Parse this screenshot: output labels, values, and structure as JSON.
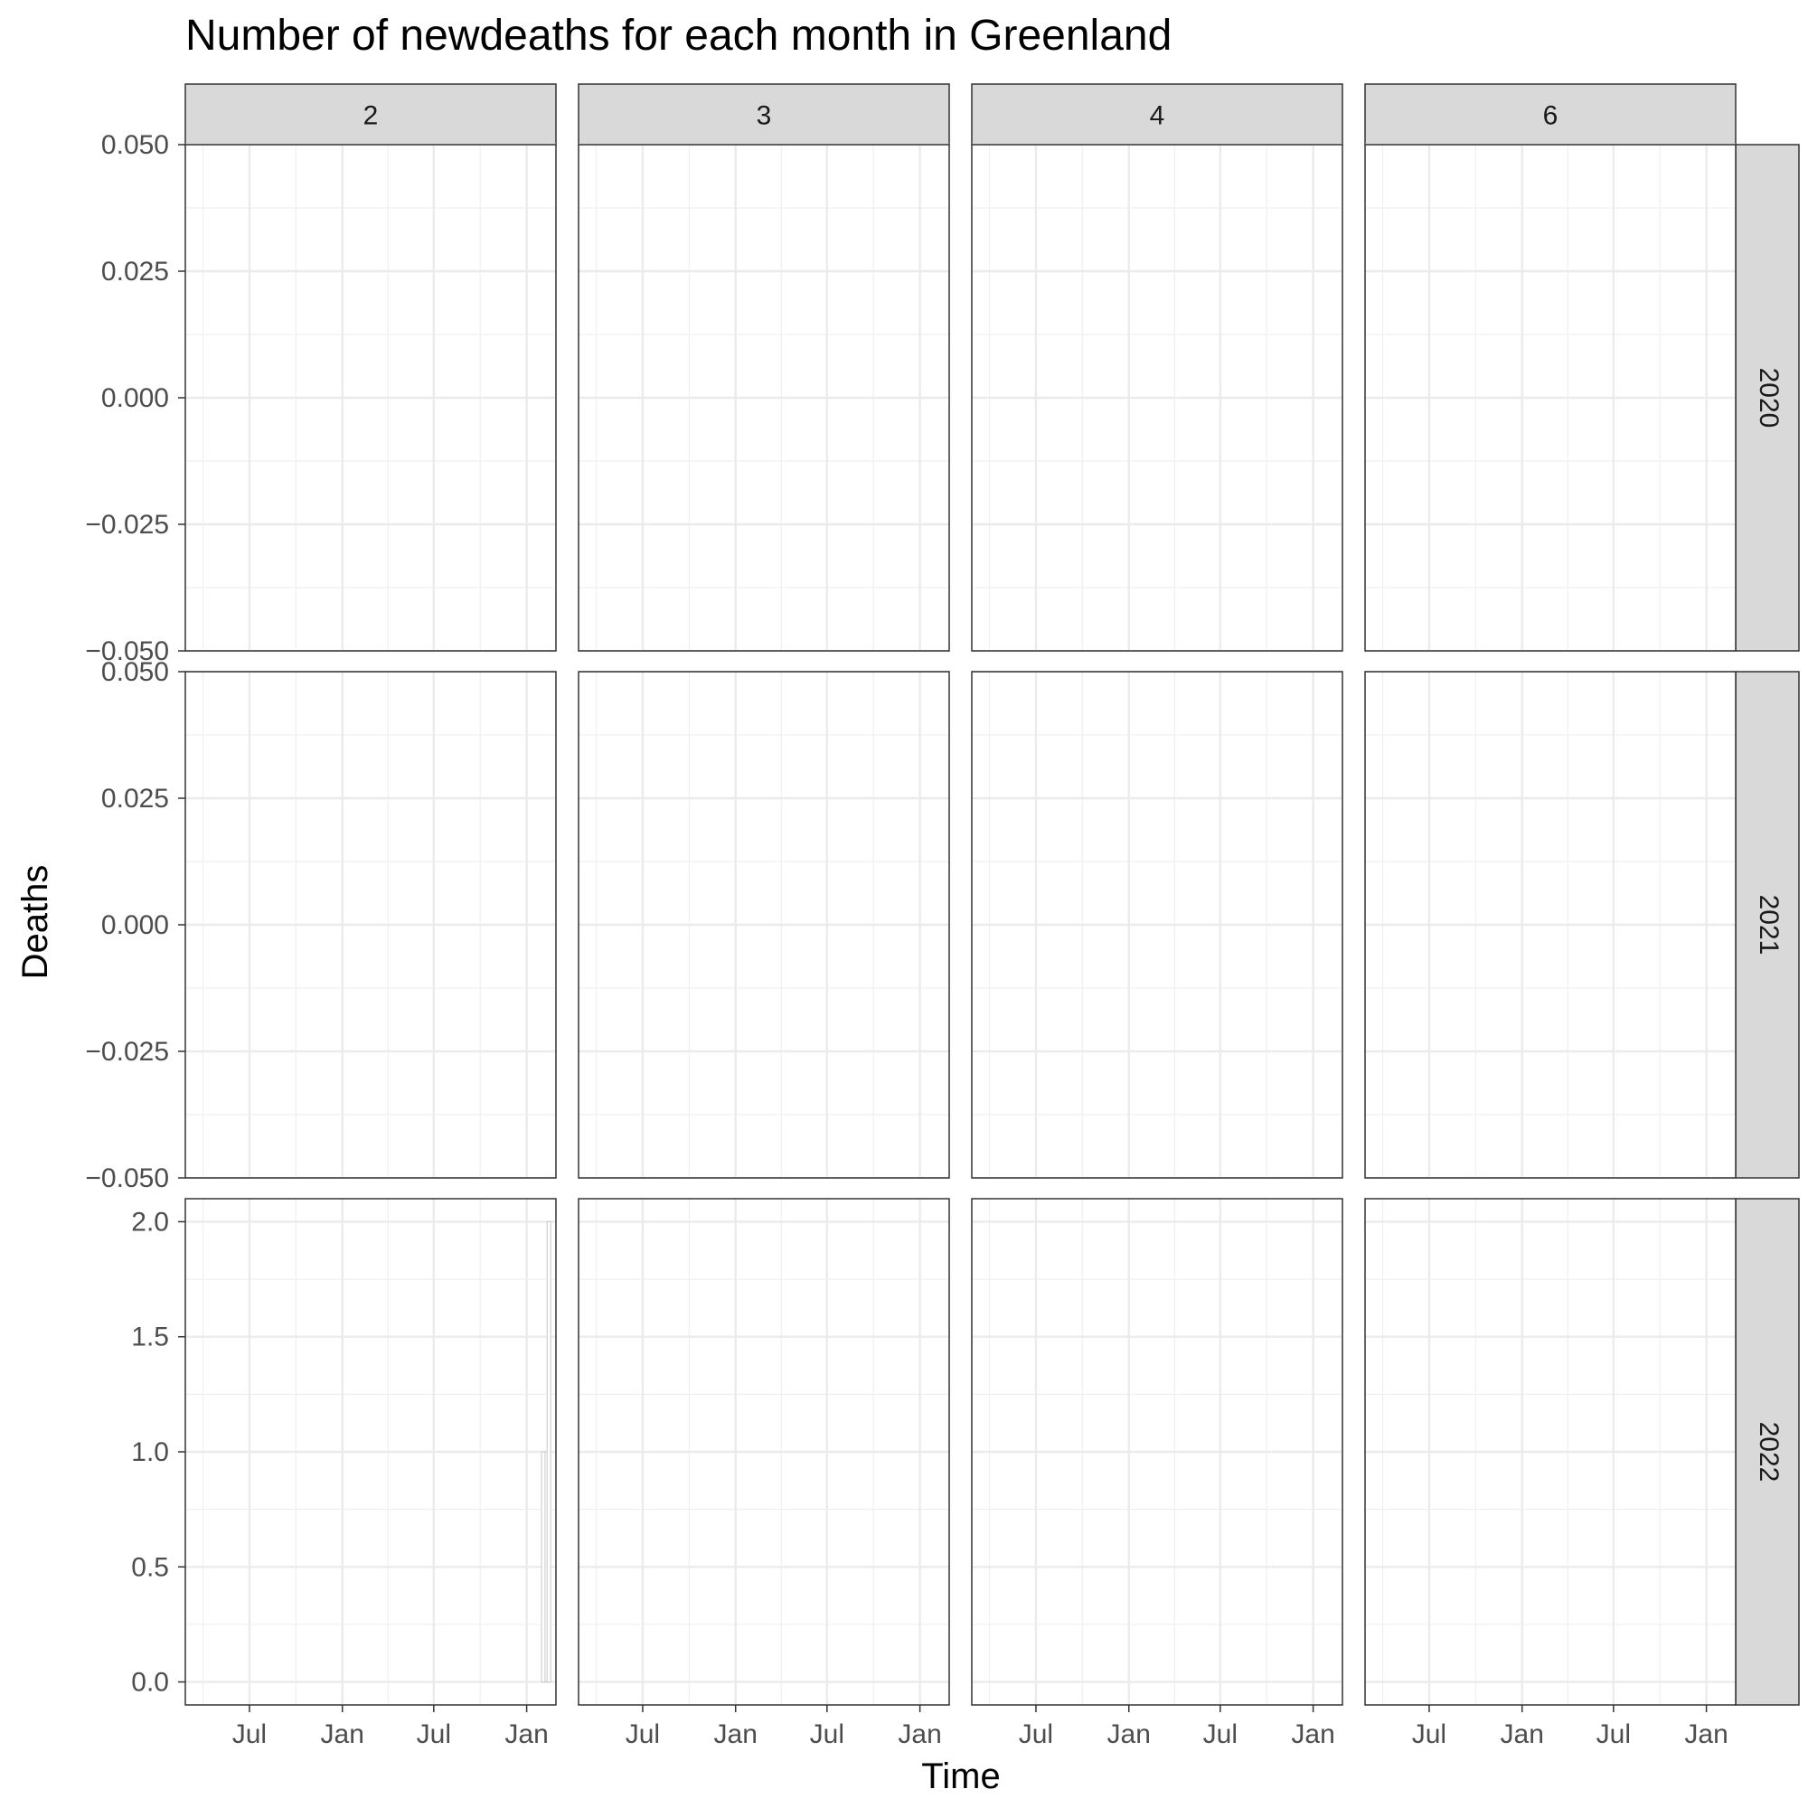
{
  "chart_data": {
    "type": "bar",
    "title": "Number of newdeaths for each month in Greenland",
    "xlabel": "Time",
    "ylabel": "Deaths",
    "grid": true,
    "facet_columns": [
      "2",
      "3",
      "4",
      "6"
    ],
    "facet_rows": [
      "2020",
      "2021",
      "2022"
    ],
    "x_ticks": [
      "Jul",
      "Jan",
      "Jul",
      "Jan"
    ],
    "x_tick_dates": [
      "2020-07-01",
      "2021-01-01",
      "2021-07-01",
      "2022-01-01"
    ],
    "xlim": [
      "2020-02-25",
      "2022-02-28"
    ],
    "rows": [
      {
        "label": "2020",
        "ylim": [
          -0.05,
          0.05
        ],
        "yticks": [
          "0.050",
          "0.025",
          "0.000",
          "−0.025",
          "−0.050"
        ],
        "ytick_values": [
          0.05,
          0.025,
          0,
          -0.025,
          -0.05
        ]
      },
      {
        "label": "2021",
        "ylim": [
          -0.05,
          0.05
        ],
        "yticks": [
          "0.050",
          "0.025",
          "0.000",
          "−0.025",
          "−0.050"
        ],
        "ytick_values": [
          0.05,
          0.025,
          0,
          -0.025,
          -0.05
        ]
      },
      {
        "label": "2022",
        "ylim": [
          -0.1,
          2.1
        ],
        "yticks": [
          "2.0",
          "1.5",
          "1.0",
          "0.5",
          "0.0"
        ],
        "ytick_values": [
          2,
          1.5,
          1,
          0.5,
          0
        ]
      }
    ],
    "series": [
      {
        "facet_row": "2022",
        "facet_col": "2",
        "points": [
          {
            "x": "2022-02-03",
            "y": 1
          },
          {
            "x": "2022-02-10",
            "y": 1
          },
          {
            "x": "2022-02-14",
            "y": 2
          }
        ]
      }
    ]
  }
}
